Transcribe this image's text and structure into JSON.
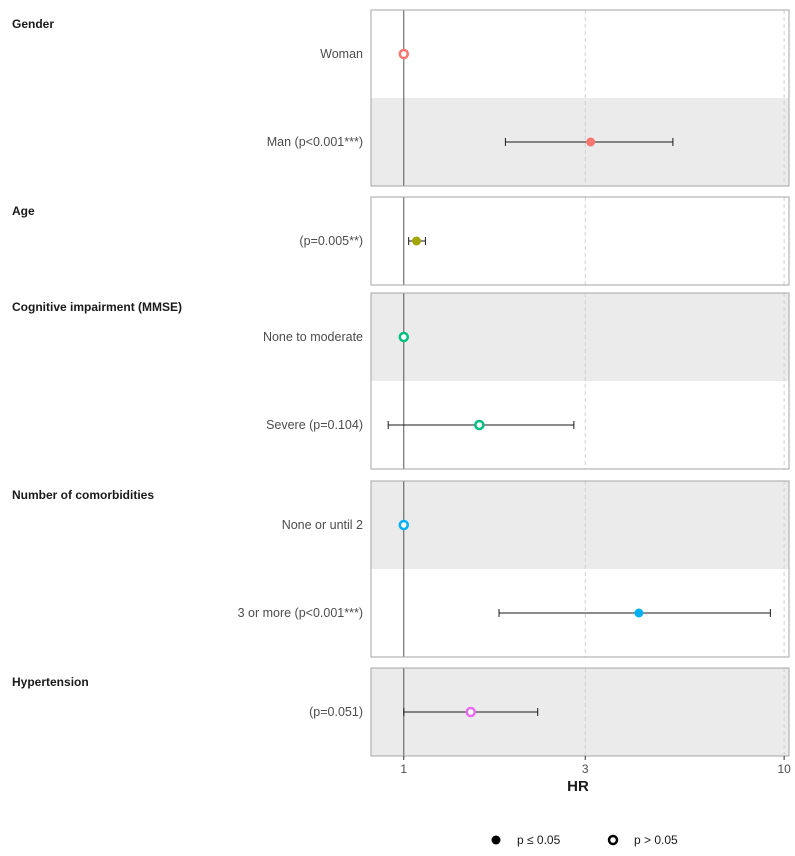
{
  "chart_data": {
    "type": "scatter",
    "subtype": "forest-plot",
    "xlabel": "HR",
    "x_scale": "log",
    "xlim": [
      0.82,
      10.3
    ],
    "x_ticks": [
      {
        "value": 1,
        "label": "1"
      },
      {
        "value": 3,
        "label": "3"
      },
      {
        "value": 10,
        "label": "10"
      }
    ],
    "reference_line": 1,
    "groups": [
      {
        "title": "Gender",
        "rows": [
          {
            "label": "Woman",
            "hr": 1.0,
            "lo": null,
            "hi": null,
            "significant": false,
            "color": "#F8766D",
            "shaded": false
          },
          {
            "label": "Man (p<0.001***)",
            "hr": 3.1,
            "lo": 1.85,
            "hi": 5.1,
            "significant": true,
            "color": "#F8766D",
            "shaded": true
          }
        ]
      },
      {
        "title": "Age",
        "rows": [
          {
            "label": "(p=0.005**)",
            "hr": 1.08,
            "lo": 1.03,
            "hi": 1.14,
            "significant": true,
            "color": "#A3A500",
            "shaded": false
          }
        ]
      },
      {
        "title": "Cognitive impairment (MMSE)",
        "rows": [
          {
            "label": "None to moderate",
            "hr": 1.0,
            "lo": null,
            "hi": null,
            "significant": false,
            "color": "#00BF7D",
            "shaded": true
          },
          {
            "label": "Severe (p=0.104)",
            "hr": 1.58,
            "lo": 0.91,
            "hi": 2.8,
            "significant": false,
            "color": "#00BF7D",
            "shaded": false
          }
        ]
      },
      {
        "title": "Number of comorbidities",
        "rows": [
          {
            "label": "None or until 2",
            "hr": 1.0,
            "lo": null,
            "hi": null,
            "significant": false,
            "color": "#00B0F6",
            "shaded": true
          },
          {
            "label": "3 or more (p<0.001***)",
            "hr": 4.15,
            "lo": 1.78,
            "hi": 9.2,
            "significant": true,
            "color": "#00B0F6",
            "shaded": false
          }
        ]
      },
      {
        "title": "Hypertension",
        "rows": [
          {
            "label": "(p=0.051)",
            "hr": 1.5,
            "lo": 1.0,
            "hi": 2.25,
            "significant": false,
            "color": "#E76BF3",
            "shaded": true
          }
        ]
      }
    ],
    "legend": {
      "position": "bottom",
      "items": [
        {
          "label": "p ≤ 0.05",
          "marker": "filled"
        },
        {
          "label": "p > 0.05",
          "marker": "hollow"
        }
      ]
    },
    "grid": true
  }
}
